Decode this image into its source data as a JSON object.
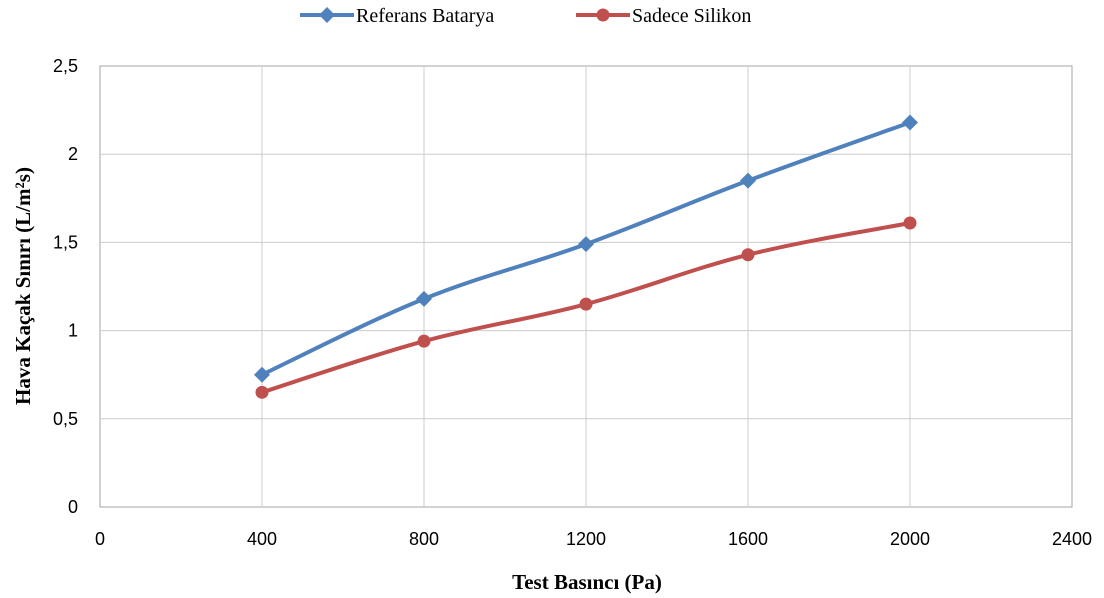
{
  "chart_data": {
    "type": "scatter",
    "title": "",
    "xlabel": "Test Basıncı (Pa)",
    "ylabel": "Hava Kaçak Sınırı (L/m²s)",
    "xlim": [
      0,
      2400
    ],
    "ylim": [
      0,
      2.5
    ],
    "x_ticks": [
      "0",
      "400",
      "800",
      "1200",
      "1600",
      "2000",
      "2400"
    ],
    "y_ticks": [
      "0",
      "0,5",
      "1",
      "1,5",
      "2",
      "2,5"
    ],
    "grid": true,
    "legend_position": "top-center",
    "series": [
      {
        "name": "Referans Batarya",
        "color": "#4F81BD",
        "marker": "diamond",
        "x": [
          400,
          800,
          1200,
          1600,
          2000
        ],
        "y": [
          0.75,
          1.18,
          1.49,
          1.85,
          2.18
        ]
      },
      {
        "name": "Sadece Silikon",
        "color": "#C0504D",
        "marker": "circle",
        "x": [
          400,
          800,
          1200,
          1600,
          2000
        ],
        "y": [
          0.65,
          0.94,
          1.15,
          1.43,
          1.61
        ]
      }
    ]
  }
}
